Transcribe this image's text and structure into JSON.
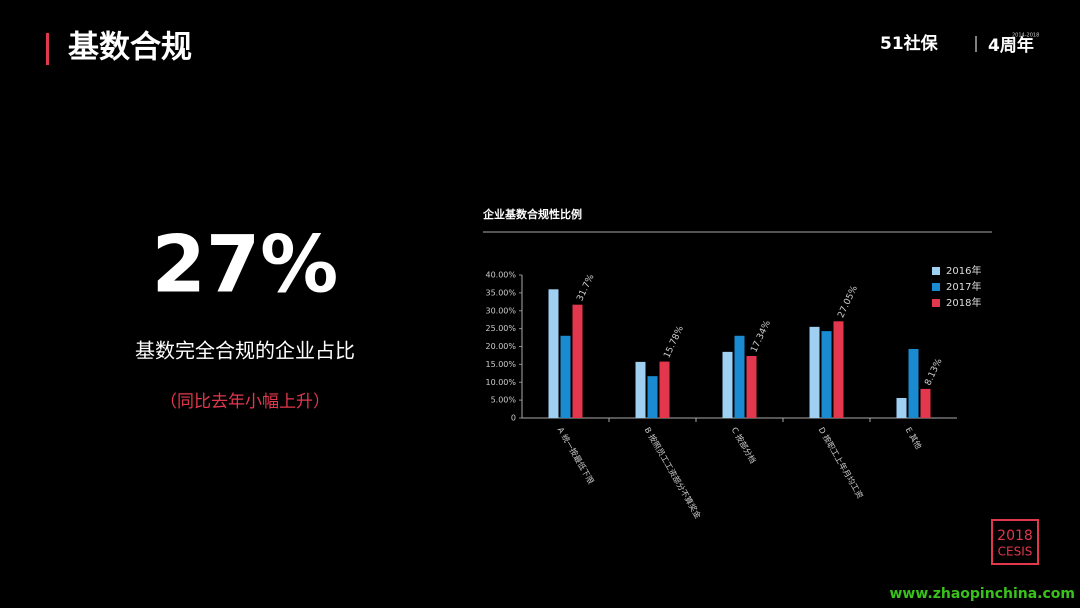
{
  "header": {
    "title": "基数合规"
  },
  "logo": {
    "brand": "51社保",
    "anniversary": "4周年",
    "years": "2014-2018"
  },
  "highlight": {
    "value": "27%",
    "caption": "基数完全合规的企业占比",
    "note": "（同比去年小幅上升）"
  },
  "chart_data": {
    "type": "bar",
    "title": "企业基数合规性比例",
    "categories": [
      "A 统一按最低下限",
      "B 按照员工工资部分不算奖金",
      "C 按部分档",
      "D 按职工上年月均工资",
      "E 其他"
    ],
    "series": [
      {
        "name": "2016年",
        "color": "#9fd0f2",
        "values": [
          36,
          15.7,
          18.5,
          25.5,
          5.6
        ]
      },
      {
        "name": "2017年",
        "color": "#1a8bd0",
        "values": [
          23,
          11.7,
          23,
          24.3,
          19.3
        ]
      },
      {
        "name": "2018年",
        "color": "#e2374c",
        "values": [
          31.7,
          15.78,
          17.34,
          27.05,
          8.13
        ],
        "value_labels": [
          "31.7%",
          "15.78%",
          "17.34%",
          "27.05%",
          "8.13%"
        ]
      }
    ],
    "ylim": [
      0,
      40
    ],
    "yticks": [
      0,
      {
        "value": 5,
        "label": "5.00%"
      },
      {
        "value": 10,
        "label": "10.00%"
      },
      {
        "value": 15,
        "label": "15.00%"
      },
      {
        "value": 20,
        "label": "20.00%"
      },
      {
        "value": 25,
        "label": "25.00%"
      },
      {
        "value": 30,
        "label": "30.00%"
      },
      {
        "value": 35,
        "label": "35.00%"
      },
      {
        "value": 40,
        "label": "40.00%"
      }
    ],
    "legend": "upper right"
  },
  "badge": {
    "year": "2018",
    "name": "CESIS"
  },
  "watermark": "www.zhaopinchina.com"
}
